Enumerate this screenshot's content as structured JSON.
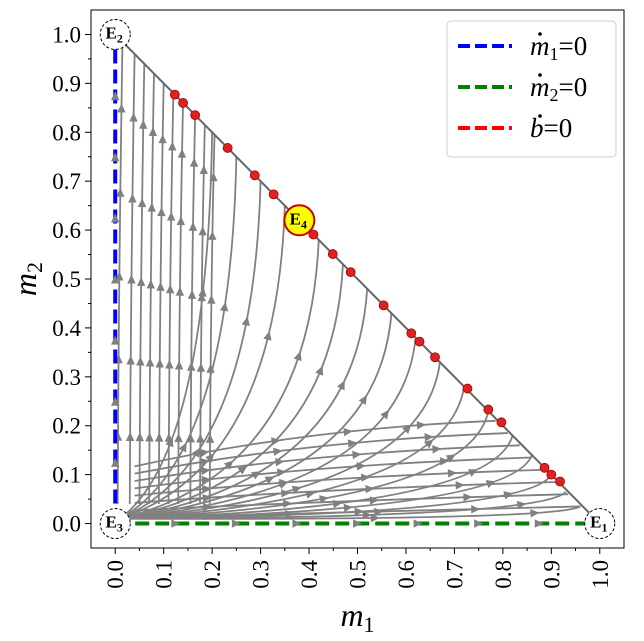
{
  "chart_data": {
    "type": "phase_portrait",
    "title": "",
    "xlabel": {
      "base": "m",
      "sub": "1"
    },
    "ylabel": {
      "base": "m",
      "sub": "2"
    },
    "xlim": [
      -0.05,
      1.05
    ],
    "ylim": [
      -0.05,
      1.05
    ],
    "xticks": [
      "0.0",
      "0.1",
      "0.2",
      "0.3",
      "0.4",
      "0.5",
      "0.6",
      "0.7",
      "0.8",
      "0.9",
      "1.0"
    ],
    "yticks": [
      "0.0",
      "0.1",
      "0.2",
      "0.3",
      "0.4",
      "0.5",
      "0.6",
      "0.7",
      "0.8",
      "0.9",
      "1.0"
    ],
    "boundary_line": {
      "from": [
        0,
        1
      ],
      "to": [
        1,
        0
      ],
      "color": "#666666"
    },
    "nullclines": [
      {
        "name_base": "m",
        "name_sub": "1",
        "rhs": "=0",
        "color": "#0000ff",
        "from": [
          0,
          0
        ],
        "to": [
          0,
          1
        ]
      },
      {
        "name_base": "m",
        "name_sub": "2",
        "rhs": "=0",
        "color": "#008000",
        "from": [
          0,
          0
        ],
        "to": [
          1,
          0
        ]
      },
      {
        "name_base": "b",
        "name_sub": "",
        "rhs": "=0",
        "color": "#ff0000",
        "points": [
          [
            0.123,
            0.877
          ],
          [
            0.14,
            0.86
          ],
          [
            0.165,
            0.835
          ],
          [
            0.232,
            0.768
          ],
          [
            0.288,
            0.712
          ],
          [
            0.327,
            0.673
          ],
          [
            0.409,
            0.591
          ],
          [
            0.449,
            0.551
          ],
          [
            0.486,
            0.514
          ],
          [
            0.554,
            0.446
          ],
          [
            0.611,
            0.389
          ],
          [
            0.628,
            0.372
          ],
          [
            0.66,
            0.34
          ],
          [
            0.727,
            0.276
          ],
          [
            0.77,
            0.233
          ],
          [
            0.797,
            0.207
          ],
          [
            0.886,
            0.114
          ],
          [
            0.9,
            0.1
          ],
          [
            0.918,
            0.086
          ]
        ]
      }
    ],
    "equilibria": [
      {
        "label": "E",
        "sub": "1",
        "x": 1.0,
        "y": 0.0,
        "style": "open"
      },
      {
        "label": "E",
        "sub": "2",
        "x": 0.0,
        "y": 1.0,
        "style": "open"
      },
      {
        "label": "E",
        "sub": "3",
        "x": 0.0,
        "y": 0.0,
        "style": "open"
      },
      {
        "label": "E",
        "sub": "4",
        "x": 0.38,
        "y": 0.62,
        "style": "filled",
        "fill": "#ffff00",
        "stroke": "#cc0000"
      }
    ],
    "trajectories": {
      "color": "#808080",
      "origin_fan_targets": [
        [
          0.2,
          0.8
        ],
        [
          0.25,
          0.75
        ],
        [
          0.3,
          0.7
        ],
        [
          0.35,
          0.65
        ],
        [
          0.42,
          0.58
        ],
        [
          0.47,
          0.53
        ],
        [
          0.52,
          0.48
        ],
        [
          0.57,
          0.43
        ],
        [
          0.62,
          0.38
        ],
        [
          0.67,
          0.33
        ],
        [
          0.72,
          0.28
        ],
        [
          0.77,
          0.23
        ],
        [
          0.82,
          0.18
        ],
        [
          0.86,
          0.14
        ],
        [
          0.9,
          0.1
        ],
        [
          0.93,
          0.065
        ],
        [
          0.96,
          0.035
        ]
      ],
      "vertical_lines_x": [
        0.005,
        0.03,
        0.05,
        0.07,
        0.09,
        0.11,
        0.13,
        0.155,
        0.175,
        0.195
      ],
      "horizontal_lines_y": [
        0.02,
        0.045,
        0.07,
        0.095,
        0.12,
        0.145,
        0.17,
        0.195
      ]
    },
    "legend_placement": "top-right"
  }
}
